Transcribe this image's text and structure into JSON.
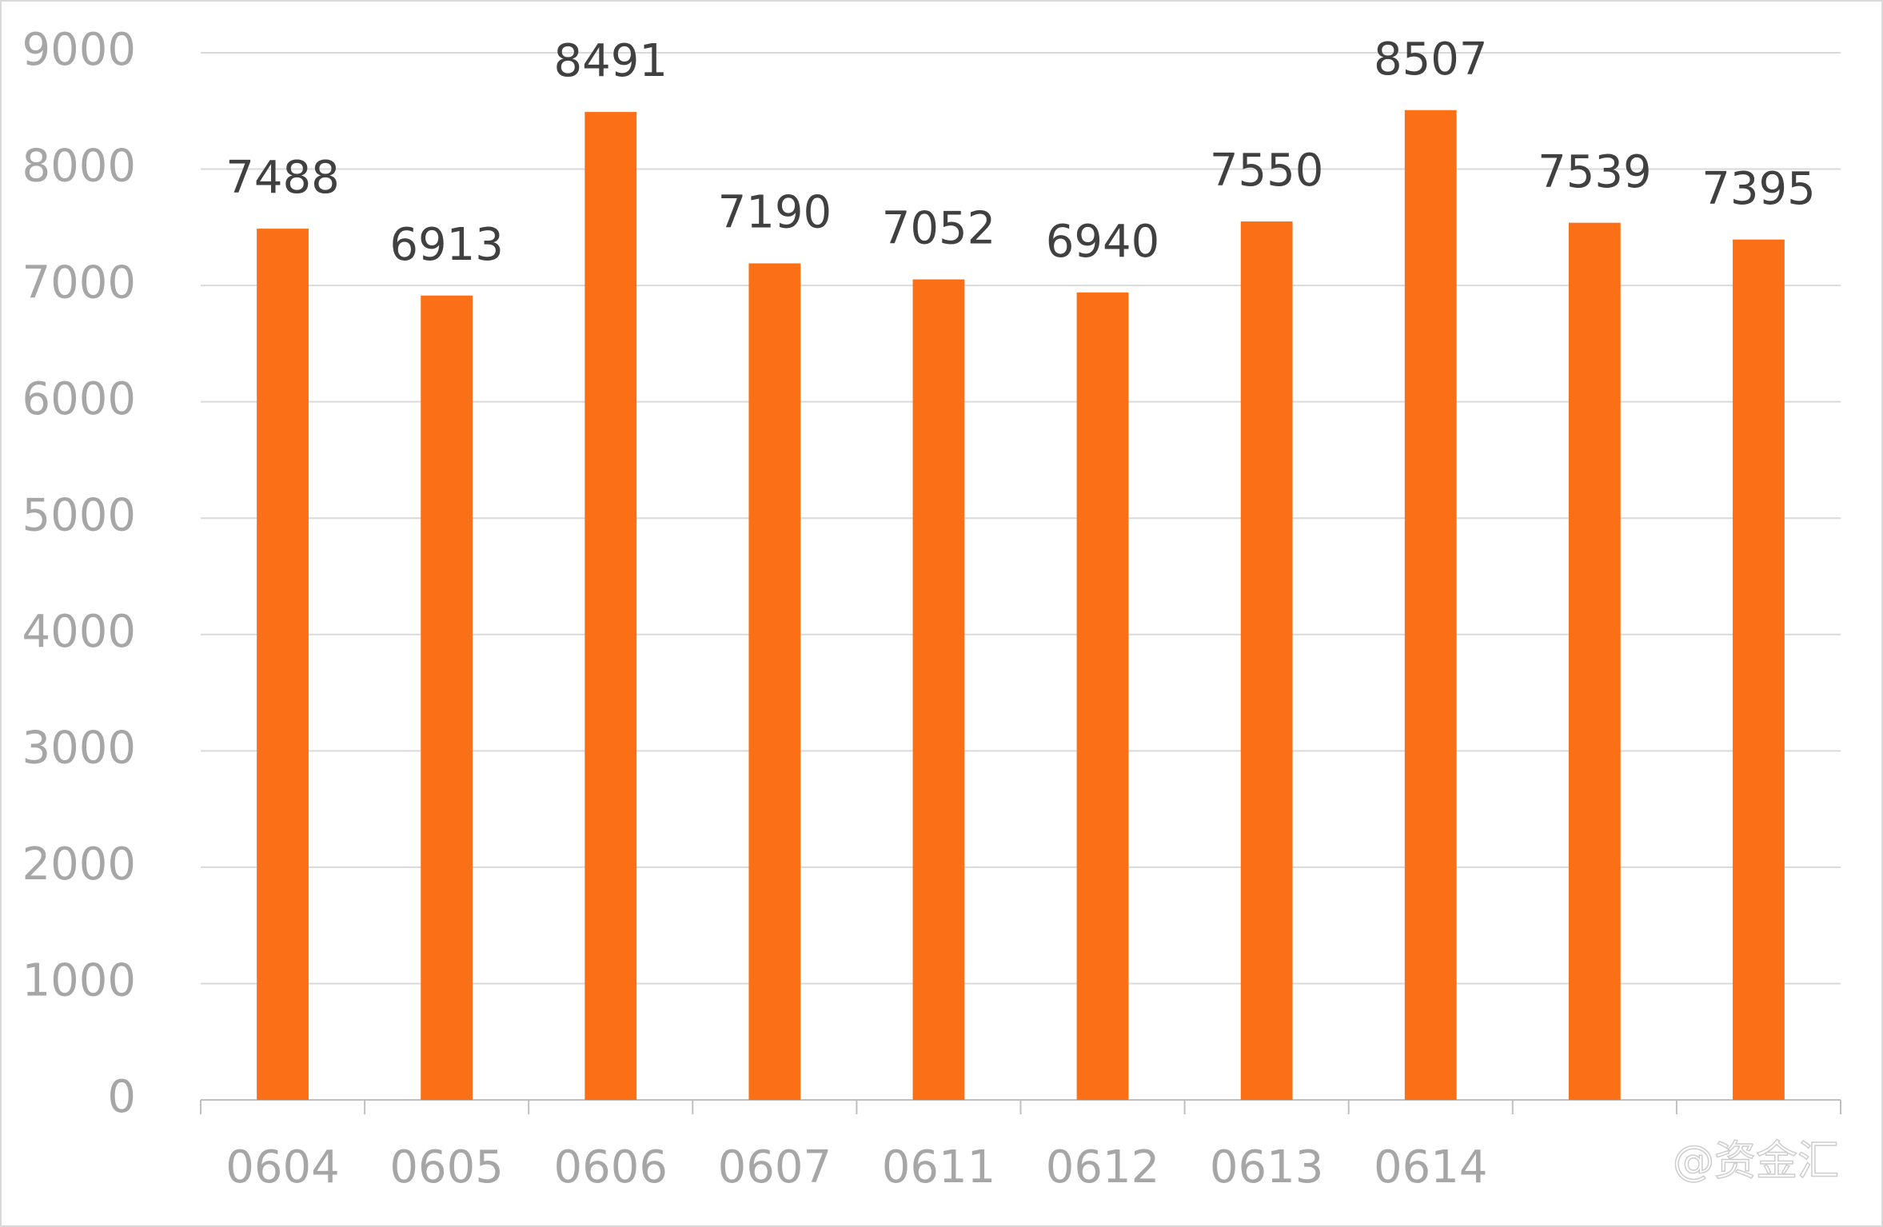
{
  "chart_data": {
    "type": "bar",
    "categories": [
      "0604",
      "0605",
      "0606",
      "0607",
      "0611",
      "0612",
      "0613",
      "0614",
      null,
      null
    ],
    "values": [
      7488,
      6913,
      8491,
      7190,
      7052,
      6940,
      7550,
      8507,
      7539,
      7395
    ],
    "color": "#fb7016",
    "ylim": [
      0,
      9000
    ],
    "yticks": [
      0,
      1000,
      2000,
      3000,
      4000,
      5000,
      6000,
      7000,
      8000,
      9000
    ],
    "grid": true,
    "watermark": "@资金汇"
  }
}
